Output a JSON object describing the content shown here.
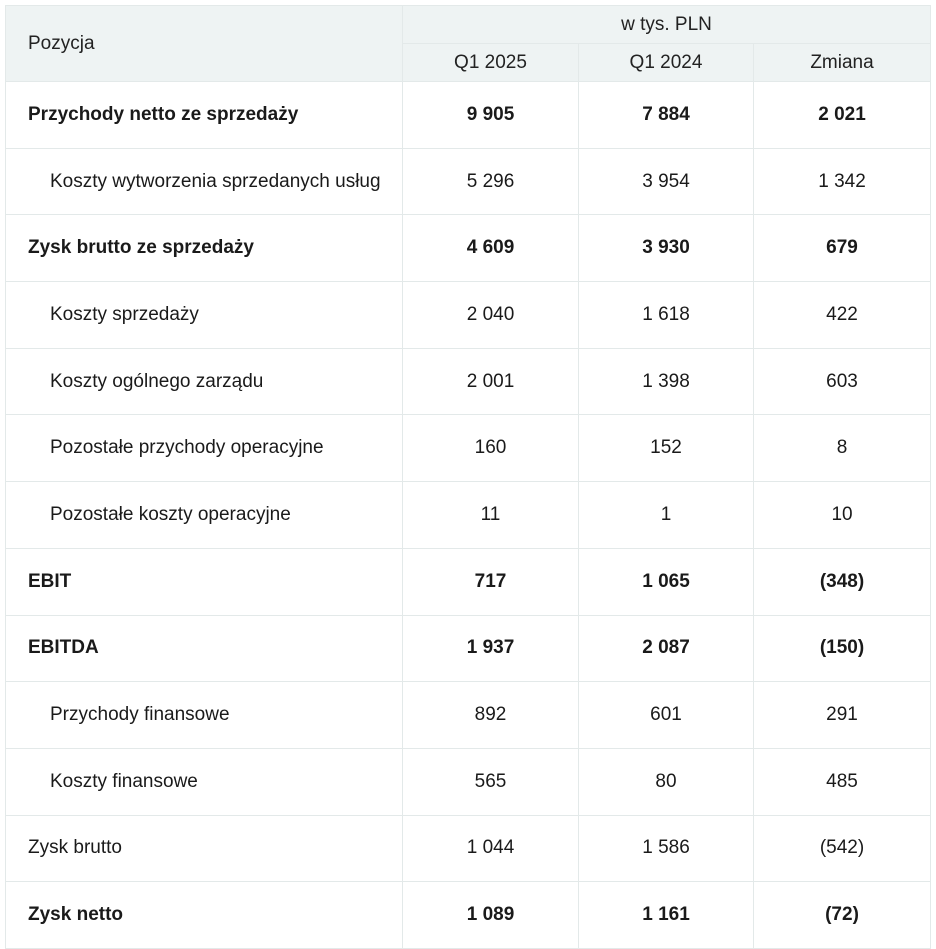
{
  "header": {
    "position": "Pozycja",
    "unit": "w tys. PLN",
    "columns": [
      "Q1 2025",
      "Q1 2024",
      "Zmiana"
    ]
  },
  "rows": [
    {
      "label": "Przychody netto ze sprzedaży",
      "bold": true,
      "indent": false,
      "values": [
        "9 905",
        "7 884",
        "2 021"
      ]
    },
    {
      "label": "Koszty wytworzenia sprzedanych usług",
      "bold": false,
      "indent": true,
      "values": [
        "5 296",
        "3 954",
        "1 342"
      ]
    },
    {
      "label": "Zysk brutto ze sprzedaży",
      "bold": true,
      "indent": false,
      "values": [
        "4 609",
        "3 930",
        "679"
      ]
    },
    {
      "label": "Koszty sprzedaży",
      "bold": false,
      "indent": true,
      "values": [
        "2 040",
        "1 618",
        "422"
      ]
    },
    {
      "label": "Koszty ogólnego zarządu",
      "bold": false,
      "indent": true,
      "values": [
        "2 001",
        "1 398",
        "603"
      ]
    },
    {
      "label": "Pozostałe przychody operacyjne",
      "bold": false,
      "indent": true,
      "values": [
        "160",
        "152",
        "8"
      ]
    },
    {
      "label": "Pozostałe koszty operacyjne",
      "bold": false,
      "indent": true,
      "values": [
        "11",
        "1",
        "10"
      ]
    },
    {
      "label": "EBIT",
      "bold": true,
      "indent": false,
      "values": [
        "717",
        "1 065",
        "(348)"
      ]
    },
    {
      "label": "EBITDA",
      "bold": true,
      "indent": false,
      "values": [
        "1 937",
        "2 087",
        "(150)"
      ]
    },
    {
      "label": "Przychody finansowe",
      "bold": false,
      "indent": true,
      "values": [
        "892",
        "601",
        "291"
      ]
    },
    {
      "label": "Koszty finansowe",
      "bold": false,
      "indent": true,
      "values": [
        "565",
        "80",
        "485"
      ]
    },
    {
      "label": "Zysk brutto",
      "bold": false,
      "indent": false,
      "values": [
        "1 044",
        "1 586",
        "(542)"
      ]
    },
    {
      "label": "Zysk netto",
      "bold": true,
      "indent": false,
      "values": [
        "1 089",
        "1 161",
        "(72)"
      ]
    }
  ]
}
